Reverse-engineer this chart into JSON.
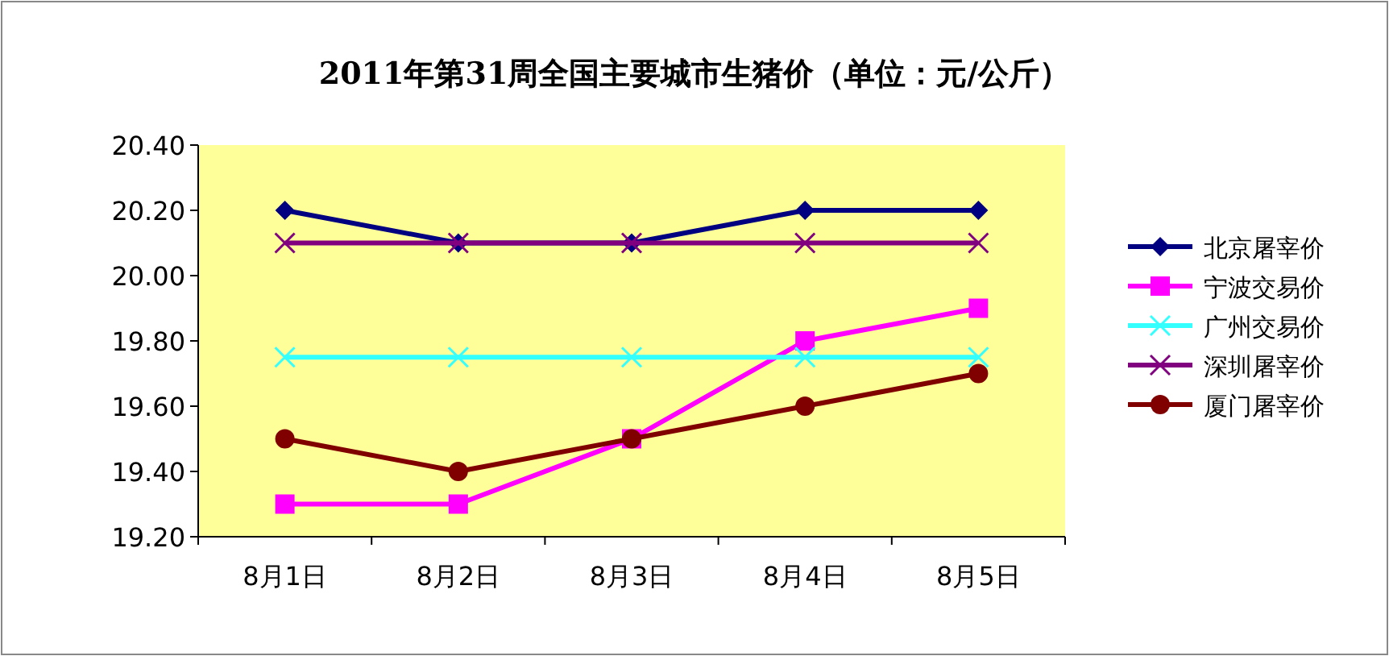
{
  "chart_data": {
    "type": "line",
    "title": "2011年第31周全国主要城市生猪价（单位：元/公斤）",
    "categories": [
      "8月1日",
      "8月2日",
      "8月3日",
      "8月4日",
      "8月5日"
    ],
    "series": [
      {
        "name": "北京屠宰价",
        "color": "#000080",
        "marker": "diamond",
        "values": [
          20.2,
          20.1,
          20.1,
          20.2,
          20.2
        ]
      },
      {
        "name": "宁波交易价",
        "color": "#ff00ff",
        "marker": "square",
        "values": [
          19.3,
          19.3,
          19.5,
          19.8,
          19.9
        ]
      },
      {
        "name": "广州交易价",
        "color": "#33ffff",
        "marker": "cross",
        "values": [
          19.75,
          19.75,
          19.75,
          19.75,
          19.75
        ]
      },
      {
        "name": "深圳屠宰价",
        "color": "#800080",
        "marker": "cross",
        "values": [
          20.1,
          20.1,
          20.1,
          20.1,
          20.1
        ]
      },
      {
        "name": "厦门屠宰价",
        "color": "#800000",
        "marker": "circle",
        "values": [
          19.5,
          19.4,
          19.5,
          19.6,
          19.7
        ]
      }
    ],
    "ylim": [
      19.2,
      20.4
    ],
    "yticks": [
      {
        "value": 19.2,
        "label": "19.20"
      },
      {
        "value": 19.4,
        "label": "19.40"
      },
      {
        "value": 19.6,
        "label": "19.60"
      },
      {
        "value": 19.8,
        "label": "19.80"
      },
      {
        "value": 20.0,
        "label": "20.00"
      },
      {
        "value": 20.2,
        "label": "20.20"
      },
      {
        "value": 20.4,
        "label": "20.40"
      }
    ],
    "grid": false,
    "legend": "right"
  }
}
